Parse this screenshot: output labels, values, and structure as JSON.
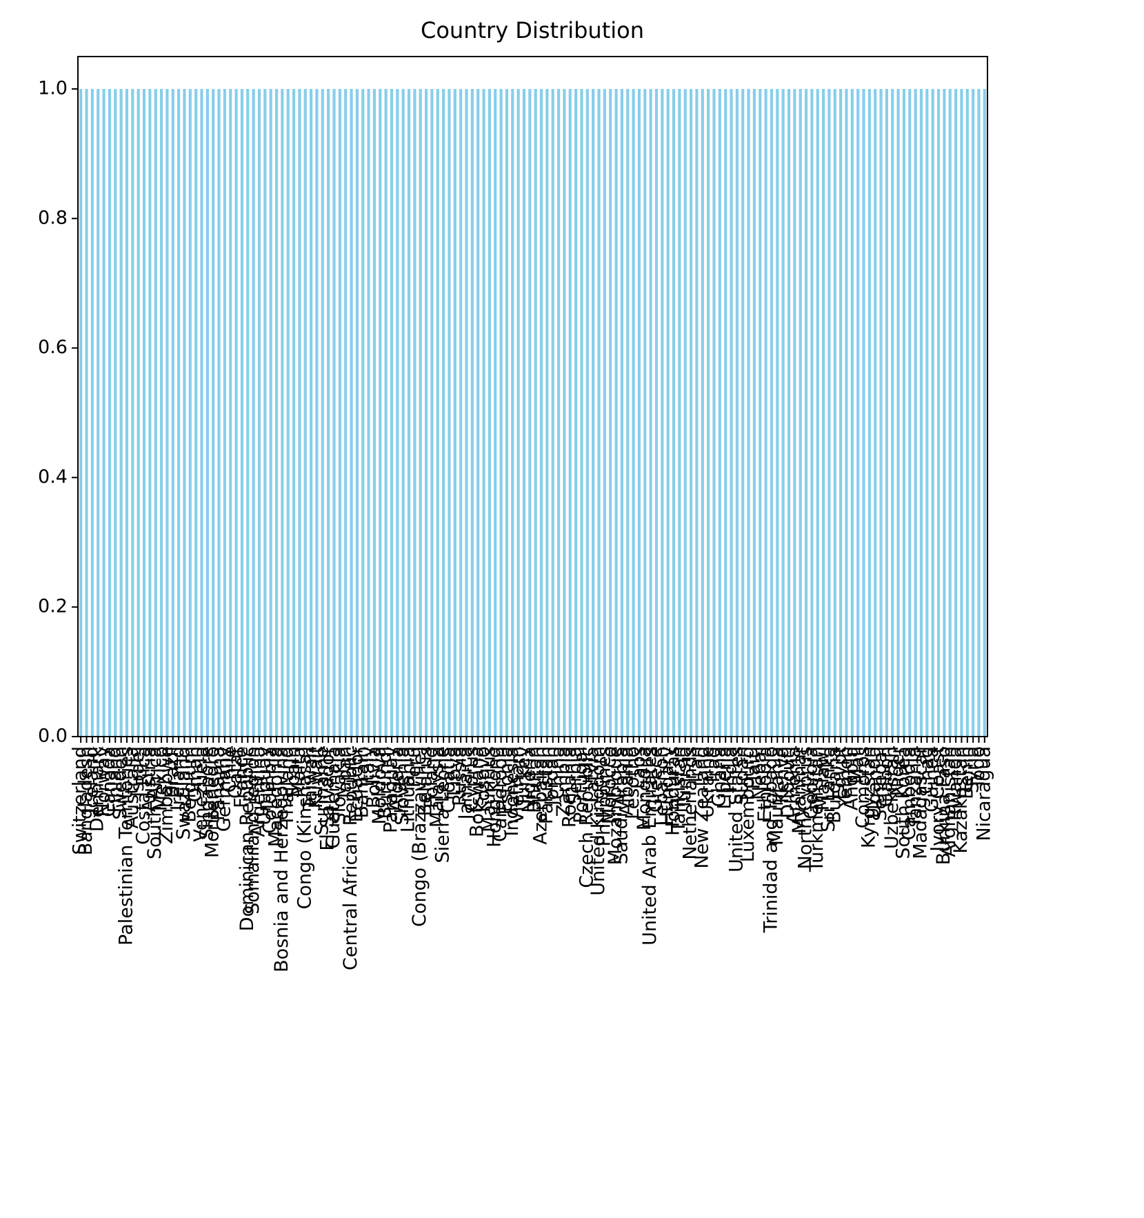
{
  "chart_data": {
    "type": "bar",
    "title": "Country Distribution",
    "categories": [
      "Switzerland",
      "Bangladesh",
      "Iceland",
      "Denmark",
      "Norway",
      "Canada",
      "Finland",
      "Sweden",
      "Palestinian Territories",
      "Australia",
      "Israel",
      "Costa Rica",
      "Austria",
      "South Africa",
      "Mexico",
      "Zimbabwe",
      "Brazil",
      "Ireland",
      "Swaziland",
      "Belgium",
      "Oman",
      "Venezuela",
      "Singapore",
      "Montenegro",
      "Panama",
      "Germany",
      "Chile",
      "Qatar",
      "France",
      "Dominican Republic",
      "Somaliland region",
      "Argentina",
      "Uruguay",
      "Colombia",
      "Macedonia",
      "Bosnia and Herzegovina",
      "Thailand",
      "Spain",
      "Malta",
      "Congo (Kinshasa)",
      "Taiwan",
      "Kuwait",
      "Suriname",
      "El Salvador",
      "Guatemala",
      "Slovakia",
      "Japan",
      "Central African Republic",
      "Ecuador",
      "Bahrain",
      "Italy",
      "Bolivia",
      "Moldova",
      "Burundi",
      "Paraguay",
      "Algeria",
      "Slovenia",
      "Lithuania",
      "Peru",
      "Congo (Brazzaville)",
      "Belarus",
      "Poland",
      "Malaysia",
      "Sierra Leone",
      "Croatia",
      "Libya",
      "Russia",
      "Jamaica",
      "Cyprus",
      "Botswana",
      "Kosovo",
      "Mauritius",
      "Hong Kong",
      "Cameroon",
      "Estonia",
      "Indonesia",
      "Vietnam",
      "Turkey",
      "Nigeria",
      "Bhutan",
      "Azerbaijan",
      "Pakistan",
      "Jordan",
      "China",
      "Zambia",
      "Romania",
      "Serbia",
      "Portugal",
      "Czech Republic",
      "Latvia",
      "United Kingdom",
      "Philippines",
      "Morocco",
      "Mozambique",
      "Saudi Arabia",
      "Albania",
      "Lesotho",
      "Laos",
      "Mongolia",
      "United Arab Emirates",
      "Greece",
      "Lebanon",
      "Hungary",
      "Honduras",
      "Tajikistan",
      "Tunisia",
      "Netherlands",
      "Iran",
      "New Zealand",
      "Ukraine",
      "Iraq",
      "Ghana",
      "Liberia",
      "India",
      "United States",
      "Sudan",
      "Luxembourg",
      "Haiti",
      "Nepal",
      "Ethiopia",
      "Trinidad and Tobago",
      "Mauritania",
      "Kenya",
      "Djibouti",
      "Armenia",
      "Myanmar",
      "North Cyprus",
      "Georgia",
      "Turkmenistan",
      "Malawi",
      "Sri Lanka",
      "Bulgaria",
      "Egypt",
      "Yemen",
      "Angola",
      "Mali",
      "Comoros",
      "Kyrgyzstan",
      "Uganda",
      "Senegal",
      "Gabon",
      "Uzbekistan",
      "Niger",
      "South Korea",
      "Cambodia",
      "Tanzania",
      "Madagascar",
      "Chad",
      "Guinea",
      "Ivory Coast",
      "Burkina Faso",
      "Afghanistan",
      "Rwanda",
      "Kazakhstan",
      "Benin",
      "Syria",
      "Togo",
      "Nicaragua"
    ],
    "values": [
      1,
      1,
      1,
      1,
      1,
      1,
      1,
      1,
      1,
      1,
      1,
      1,
      1,
      1,
      1,
      1,
      1,
      1,
      1,
      1,
      1,
      1,
      1,
      1,
      1,
      1,
      1,
      1,
      1,
      1,
      1,
      1,
      1,
      1,
      1,
      1,
      1,
      1,
      1,
      1,
      1,
      1,
      1,
      1,
      1,
      1,
      1,
      1,
      1,
      1,
      1,
      1,
      1,
      1,
      1,
      1,
      1,
      1,
      1,
      1,
      1,
      1,
      1,
      1,
      1,
      1,
      1,
      1,
      1,
      1,
      1,
      1,
      1,
      1,
      1,
      1,
      1,
      1,
      1,
      1,
      1,
      1,
      1,
      1,
      1,
      1,
      1,
      1,
      1,
      1,
      1,
      1,
      1,
      1,
      1,
      1,
      1,
      1,
      1,
      1,
      1,
      1,
      1,
      1,
      1,
      1,
      1,
      1,
      1,
      1,
      1,
      1,
      1,
      1,
      1,
      1,
      1,
      1,
      1,
      1,
      1,
      1,
      1,
      1,
      1,
      1,
      1,
      1,
      1,
      1,
      1,
      1,
      1,
      1,
      1,
      1,
      1,
      1,
      1,
      1,
      1,
      1,
      1,
      1,
      1,
      1,
      1,
      1,
      1,
      1,
      1,
      1,
      1,
      1,
      1,
      1,
      1,
      1
    ],
    "color": "#87ceeb",
    "ylim": [
      0,
      1.05
    ],
    "yticks": [
      {
        "value": 0,
        "label": "0.0"
      },
      {
        "value": 0.2,
        "label": "0.2"
      },
      {
        "value": 0.4,
        "label": "0.4"
      },
      {
        "value": 0.6,
        "label": "0.6"
      },
      {
        "value": 0.8,
        "label": "0.8"
      },
      {
        "value": 1,
        "label": "1.0"
      }
    ],
    "grid": false
  }
}
